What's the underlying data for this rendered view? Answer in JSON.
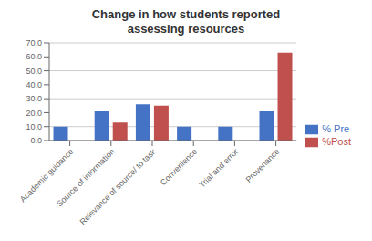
{
  "chart_data": {
    "type": "bar",
    "title": "Change in how students reported\nassessing resources",
    "categories": [
      "Academic guidance",
      "Source of information",
      "Relevance of source/ to task",
      "Convenience",
      "Trial and error",
      "Provenance"
    ],
    "series": [
      {
        "name": "% Pre",
        "color": "#4472C4",
        "values": [
          10.0,
          21.0,
          26.0,
          10.0,
          10.0,
          21.0
        ]
      },
      {
        "name": "%Post",
        "color": "#C0504D",
        "values": [
          0.0,
          13.0,
          25.0,
          0.0,
          0.0,
          63.0
        ]
      }
    ],
    "ylim": [
      0,
      70
    ],
    "yticks": [
      {
        "value": 0,
        "label": "0.0"
      },
      {
        "value": 10,
        "label": "10.0"
      },
      {
        "value": 20,
        "label": "20.0"
      },
      {
        "value": 30,
        "label": "30.0"
      },
      {
        "value": 40,
        "label": "40.0"
      },
      {
        "value": 50,
        "label": "50.0"
      },
      {
        "value": 60,
        "label": "60.0"
      },
      {
        "value": 70,
        "label": "70.0"
      }
    ],
    "grid": true,
    "legend": "right"
  }
}
